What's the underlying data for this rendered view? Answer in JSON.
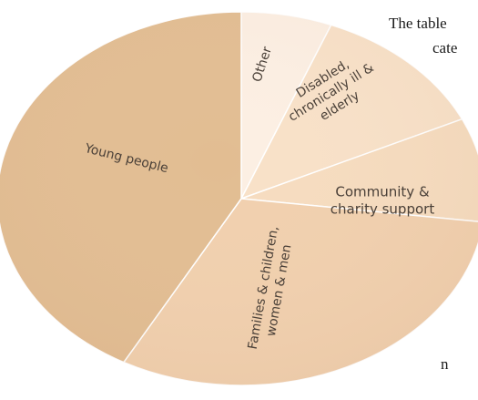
{
  "page_text": {
    "line1": "The table",
    "line2": "cate",
    "line3": "n"
  },
  "chart_data": {
    "type": "pie",
    "title": "",
    "categories": [
      "Other",
      "Disabled, chronically ill & elderly",
      "Community & charity support",
      "Families & children, women & men",
      "Young people"
    ],
    "values": [
      6,
      12,
      9,
      31,
      42
    ],
    "colors": [
      "#fcefe3",
      "#f8e1c8",
      "#f6dcbf",
      "#f1d0ae",
      "#e2bd92"
    ],
    "labels": [
      [
        "Other"
      ],
      [
        "Disabled,",
        "chronically ill &",
        "elderly"
      ],
      [
        "Community &",
        "charity support"
      ],
      [
        "Families & children,",
        "women & men"
      ],
      [
        "Young people"
      ]
    ]
  }
}
